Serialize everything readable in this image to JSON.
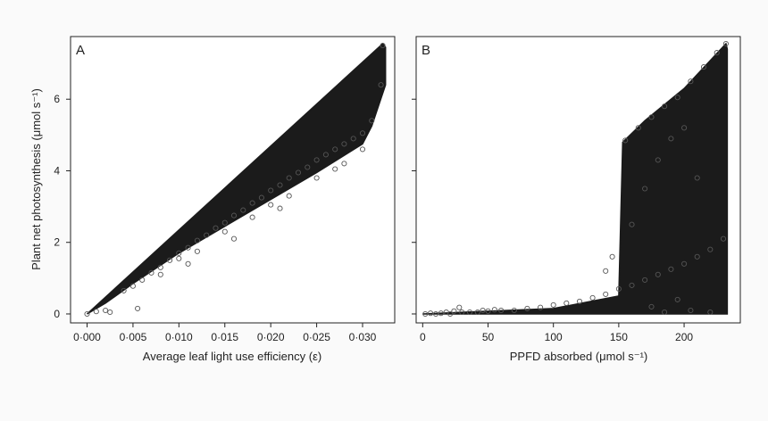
{
  "chart_data": [
    {
      "type": "scatter",
      "panel_label": "A",
      "xlabel": "Average leaf light use efficiency (ε)",
      "ylabel": "Plant net photosynthesis (μmol s⁻¹)",
      "xlim": [
        -0.0018,
        0.0335
      ],
      "ylim": [
        -0.25,
        7.75
      ],
      "x_ticks": [
        0,
        0.005,
        0.01,
        0.015,
        0.02,
        0.025,
        0.03
      ],
      "x_tick_labels": [
        "0·000",
        "0·005",
        "0·010",
        "0·015",
        "0·020",
        "0·025",
        "0·030"
      ],
      "y_ticks": [
        0,
        2,
        4,
        6
      ],
      "y_tick_labels": [
        "0",
        "2",
        "4",
        "6"
      ],
      "marker": "open-circle",
      "grid": false,
      "series": [
        {
          "points": [
            [
              0.0,
              0.0
            ],
            [
              0.001,
              0.07
            ],
            [
              0.002,
              0.1
            ],
            [
              0.0025,
              0.05
            ],
            [
              0.0055,
              0.15
            ],
            [
              0.004,
              0.65
            ],
            [
              0.006,
              0.95
            ],
            [
              0.007,
              1.15
            ],
            [
              0.008,
              1.3
            ],
            [
              0.009,
              1.5
            ],
            [
              0.01,
              1.7
            ],
            [
              0.011,
              1.85
            ],
            [
              0.012,
              2.05
            ],
            [
              0.013,
              2.2
            ],
            [
              0.014,
              2.4
            ],
            [
              0.015,
              2.55
            ],
            [
              0.016,
              2.75
            ],
            [
              0.017,
              2.9
            ],
            [
              0.018,
              3.1
            ],
            [
              0.019,
              3.25
            ],
            [
              0.02,
              3.45
            ],
            [
              0.021,
              3.6
            ],
            [
              0.022,
              3.8
            ],
            [
              0.023,
              3.95
            ],
            [
              0.024,
              4.1
            ],
            [
              0.025,
              4.3
            ],
            [
              0.026,
              4.45
            ],
            [
              0.027,
              4.6
            ],
            [
              0.028,
              4.75
            ],
            [
              0.029,
              4.9
            ],
            [
              0.03,
              5.05
            ],
            [
              0.031,
              5.4
            ],
            [
              0.032,
              6.4
            ],
            [
              0.0322,
              7.5
            ],
            [
              0.005,
              0.78
            ],
            [
              0.01,
              1.55
            ],
            [
              0.015,
              2.3
            ],
            [
              0.02,
              3.05
            ],
            [
              0.025,
              3.8
            ],
            [
              0.03,
              4.6
            ],
            [
              0.008,
              1.1
            ],
            [
              0.012,
              1.75
            ],
            [
              0.018,
              2.7
            ],
            [
              0.022,
              3.3
            ],
            [
              0.028,
              4.2
            ],
            [
              0.011,
              1.4
            ],
            [
              0.016,
              2.1
            ],
            [
              0.021,
              2.95
            ],
            [
              0.027,
              4.05
            ]
          ]
        }
      ]
    },
    {
      "type": "scatter",
      "panel_label": "B",
      "xlabel": "PPFD absorbed (μmol s⁻¹)",
      "ylabel": "",
      "xlim": [
        -5,
        243
      ],
      "ylim": [
        -0.25,
        7.75
      ],
      "x_ticks": [
        0,
        50,
        100,
        150,
        200
      ],
      "x_tick_labels": [
        "0",
        "50",
        "100",
        "150",
        "200"
      ],
      "y_ticks": [
        0,
        2,
        4,
        6
      ],
      "y_tick_labels": [],
      "marker": "open-circle",
      "grid": false,
      "series": [
        {
          "points": [
            [
              2,
              0.0
            ],
            [
              6,
              0.02
            ],
            [
              10,
              0.0
            ],
            [
              14,
              0.02
            ],
            [
              18,
              0.05
            ],
            [
              21,
              0.0
            ],
            [
              24,
              0.08
            ],
            [
              28,
              0.18
            ],
            [
              30,
              0.05
            ],
            [
              36,
              0.05
            ],
            [
              42,
              0.05
            ],
            [
              46,
              0.1
            ],
            [
              50,
              0.08
            ],
            [
              55,
              0.12
            ],
            [
              60,
              0.1
            ],
            [
              70,
              0.1
            ],
            [
              80,
              0.15
            ],
            [
              90,
              0.18
            ],
            [
              100,
              0.25
            ],
            [
              110,
              0.3
            ],
            [
              120,
              0.35
            ],
            [
              130,
              0.45
            ],
            [
              140,
              0.55
            ],
            [
              150,
              0.7
            ],
            [
              160,
              0.8
            ],
            [
              170,
              0.95
            ],
            [
              180,
              1.1
            ],
            [
              190,
              1.25
            ],
            [
              200,
              1.4
            ],
            [
              210,
              1.6
            ],
            [
              220,
              1.8
            ],
            [
              230,
              2.1
            ],
            [
              155,
              4.85
            ],
            [
              165,
              5.2
            ],
            [
              175,
              5.5
            ],
            [
              185,
              5.8
            ],
            [
              195,
              6.05
            ],
            [
              205,
              6.5
            ],
            [
              215,
              6.9
            ],
            [
              225,
              7.3
            ],
            [
              232,
              7.55
            ],
            [
              140,
              1.2
            ],
            [
              145,
              1.6
            ],
            [
              160,
              2.5
            ],
            [
              170,
              3.5
            ],
            [
              180,
              4.3
            ],
            [
              190,
              4.9
            ],
            [
              200,
              5.2
            ],
            [
              210,
              3.8
            ],
            [
              175,
              0.2
            ],
            [
              185,
              0.05
            ],
            [
              195,
              0.4
            ],
            [
              205,
              0.1
            ],
            [
              220,
              0.05
            ]
          ]
        }
      ]
    }
  ]
}
